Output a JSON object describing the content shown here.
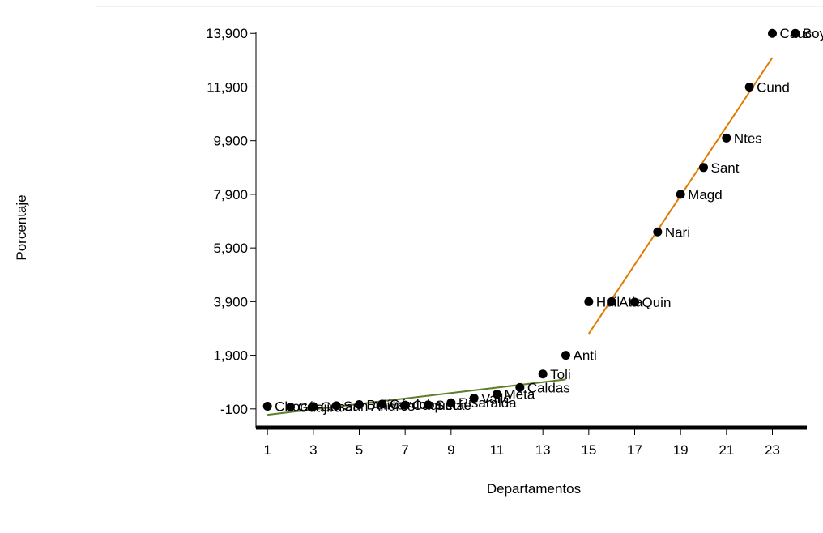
{
  "chart_data": {
    "type": "scatter",
    "xlabel": "Departamentos",
    "ylabel": "Porcentaje",
    "xlim": [
      0.5,
      24.5
    ],
    "ylim": [
      -800,
      14300
    ],
    "xticks": [
      1,
      3,
      5,
      7,
      9,
      11,
      13,
      15,
      17,
      19,
      21,
      23
    ],
    "xtick_labels": [
      "1",
      "3",
      "5",
      "7",
      "9",
      "11",
      "13",
      "15",
      "17",
      "19",
      "21",
      "23"
    ],
    "yticks": [
      -100,
      1900,
      3900,
      5900,
      7900,
      9900,
      11900,
      13900
    ],
    "ytick_labels": [
      "-100",
      "1,900",
      "3,900",
      "5,900",
      "7,900",
      "9,900",
      "11,900",
      "13,900"
    ],
    "grid": false,
    "points": [
      {
        "x": 1,
        "y": 0,
        "label": "Chocó"
      },
      {
        "x": 2,
        "y": -30,
        "label": "Guajira"
      },
      {
        "x": 3,
        "y": -10,
        "label": "Cesar"
      },
      {
        "x": 4,
        "y": 20,
        "label": "San Andrés"
      },
      {
        "x": 5,
        "y": 60,
        "label": "Bolívar"
      },
      {
        "x": 6,
        "y": 80,
        "label": "Córdoba"
      },
      {
        "x": 7,
        "y": 40,
        "label": "Caquetá"
      },
      {
        "x": 8,
        "y": 50,
        "label": "Sucre"
      },
      {
        "x": 9,
        "y": 130,
        "label": "Risaralda"
      },
      {
        "x": 10,
        "y": 300,
        "label": "Valle"
      },
      {
        "x": 11,
        "y": 450,
        "label": "Meta"
      },
      {
        "x": 12,
        "y": 700,
        "label": "Caldas"
      },
      {
        "x": 13,
        "y": 1200,
        "label": "Toli"
      },
      {
        "x": 14,
        "y": 1900,
        "label": "Anti"
      },
      {
        "x": 15,
        "y": 3900,
        "label": "Huil"
      },
      {
        "x": 16,
        "y": 3900,
        "label": "Atla"
      },
      {
        "x": 17,
        "y": 3880,
        "label": "Quin"
      },
      {
        "x": 18,
        "y": 6500,
        "label": "Nari"
      },
      {
        "x": 19,
        "y": 7900,
        "label": "Magd"
      },
      {
        "x": 20,
        "y": 8900,
        "label": "Sant"
      },
      {
        "x": 21,
        "y": 10000,
        "label": "Ntes"
      },
      {
        "x": 22,
        "y": 11900,
        "label": "Cund"
      },
      {
        "x": 23,
        "y": 13900,
        "label": "Cauc"
      },
      {
        "x": 24,
        "y": 13900,
        "label": "Boya"
      }
    ],
    "fit_lines": [
      {
        "color": "#5b7f2b",
        "x": [
          1,
          14
        ],
        "y": [
          -320,
          1000
        ]
      },
      {
        "color": "#e07b00",
        "x": [
          15,
          23
        ],
        "y": [
          2700,
          13000
        ]
      }
    ],
    "colors": {
      "points": "#000000",
      "axis": "#000000"
    }
  }
}
